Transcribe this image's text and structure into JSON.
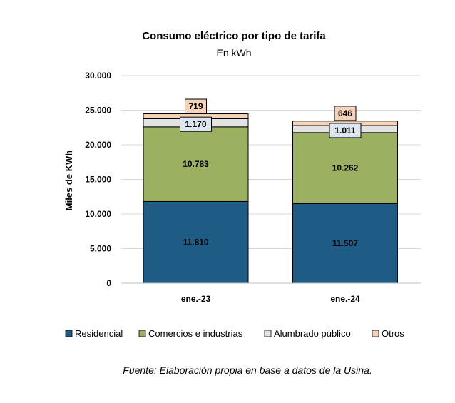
{
  "chart_data": {
    "type": "bar",
    "stacked": true,
    "title": "Consumo eléctrico por tipo de tarifa",
    "subtitle": "En kWh",
    "ylabel": "Miles de KWh",
    "xlabel": "",
    "categories": [
      "ene.-23",
      "ene.-24"
    ],
    "ylim": [
      0,
      30000
    ],
    "yticks": [
      0,
      5000,
      10000,
      15000,
      20000,
      25000,
      30000
    ],
    "ytick_labels": [
      "0",
      "5.000",
      "10.000",
      "15.000",
      "20.000",
      "25.000",
      "30.000"
    ],
    "grid": true,
    "legend_position": "bottom",
    "series": [
      {
        "name": "Residencial",
        "values": [
          11810,
          11507
        ],
        "labels": [
          "11.810",
          "11.507"
        ],
        "color": "#1f5c85"
      },
      {
        "name": "Comercios e industrias",
        "values": [
          10783,
          10262
        ],
        "labels": [
          "10.783",
          "10.262"
        ],
        "color": "#9bb060"
      },
      {
        "name": "Alumbrado público",
        "values": [
          1170,
          1011
        ],
        "labels": [
          "1.170",
          "1.011"
        ],
        "color": "#e3e3e3"
      },
      {
        "name": "Otros",
        "values": [
          719,
          646
        ],
        "labels": [
          "719",
          "646"
        ],
        "color": "#f6d2b8"
      }
    ],
    "source": "Fuente: Elaboración propia en base a datos de la Usina."
  }
}
